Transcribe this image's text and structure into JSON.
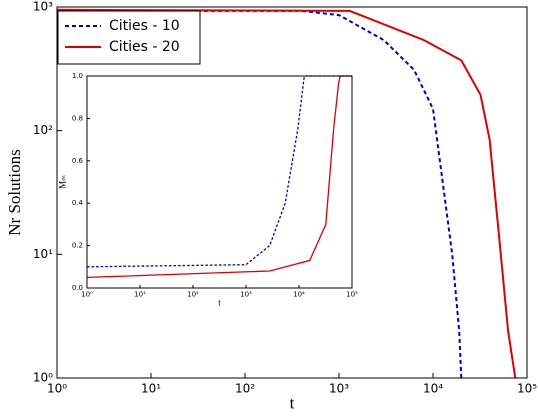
{
  "chart_data": [
    {
      "type": "line",
      "xlabel": "t",
      "ylabel": "Nr Solutions",
      "xscale": "log",
      "yscale": "log",
      "xlim": [
        1,
        100000
      ],
      "ylim": [
        1,
        1000
      ],
      "xticks": [
        {
          "value": 1,
          "label": "10⁰"
        },
        {
          "value": 10,
          "label": "10¹"
        },
        {
          "value": 100,
          "label": "10²"
        },
        {
          "value": 1000,
          "label": "10³"
        },
        {
          "value": 10000,
          "label": "10⁴"
        },
        {
          "value": 100000,
          "label": "10⁵"
        }
      ],
      "yticks": [
        {
          "value": 1,
          "label": "10⁰"
        },
        {
          "value": 10,
          "label": "10¹"
        },
        {
          "value": 100,
          "label": "10²"
        },
        {
          "value": 1000,
          "label": "10³"
        }
      ],
      "legend": "upper left",
      "series": [
        {
          "name": "Cities  - 10",
          "color": "#0000cc",
          "linestyle": "dashed",
          "x": [
            1,
            400,
            1000,
            3000,
            6300,
            10000,
            12600,
            16000,
            19000,
            20000
          ],
          "values": [
            930,
            930,
            860,
            540,
            310,
            150,
            40,
            10,
            2.4,
            1
          ]
        },
        {
          "name": "Cities  - 20",
          "color": "#dd0000",
          "linestyle": "solid",
          "x": [
            1,
            1300,
            8000,
            20000,
            32000,
            40000,
            50000,
            63000,
            75000
          ],
          "values": [
            950,
            930,
            540,
            370,
            195,
            85,
            15,
            2.4,
            1
          ]
        }
      ]
    },
    {
      "type": "line",
      "xlabel": "t",
      "ylabel": "Mₘ",
      "xscale": "log",
      "yscale": "linear",
      "xlim": [
        1,
        100000
      ],
      "ylim": [
        0,
        1
      ],
      "xticks": [
        {
          "value": 1,
          "label": "10⁰"
        },
        {
          "value": 10,
          "label": "10¹"
        },
        {
          "value": 100,
          "label": "10²"
        },
        {
          "value": 1000,
          "label": "10³"
        },
        {
          "value": 10000,
          "label": "10⁴"
        },
        {
          "value": 100000,
          "label": "10⁵"
        }
      ],
      "yticks": [
        {
          "value": 0,
          "label": "0.0"
        },
        0.2,
        0.4,
        0.6,
        0.8,
        {
          "value": 1,
          "label": "1.0"
        }
      ],
      "series": [
        {
          "color": "#0000cc",
          "linestyle": "dashed",
          "x": [
            1,
            1000,
            2800,
            5500,
            9500,
            12600,
            100000
          ],
          "values": [
            0.1,
            0.11,
            0.2,
            0.4,
            0.75,
            1,
            1
          ]
        },
        {
          "color": "#dd0000",
          "linestyle": "solid",
          "x": [
            1,
            2800,
            16000,
            32000,
            45000,
            56000,
            60000,
            100000
          ],
          "values": [
            0.05,
            0.08,
            0.13,
            0.3,
            0.75,
            0.97,
            1,
            1
          ]
        }
      ]
    }
  ]
}
